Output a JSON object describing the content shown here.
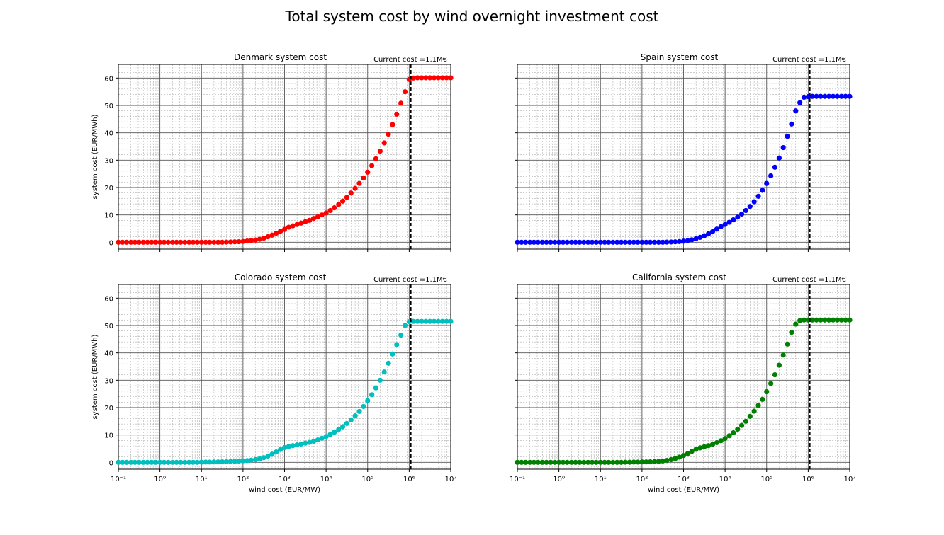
{
  "figure": {
    "title": "Total system cost by wind overnight investment cost"
  },
  "chart_data": [
    {
      "type": "scatter",
      "title": "Denmark system cost",
      "annotation": "Current cost =1.1M€",
      "marker_x": 1100000,
      "color": "#ff0000",
      "xlabel": "",
      "ylabel": "system cost (EUR/MWh)",
      "xscale": "log",
      "xlim": [
        0.1,
        10000000
      ],
      "ylim": [
        -2.5,
        65
      ],
      "yticks": [
        0,
        10,
        20,
        30,
        40,
        50,
        60
      ],
      "grid": "major and minor",
      "x": [
        0.1,
        0.126,
        0.158,
        0.2,
        0.251,
        0.316,
        0.398,
        0.501,
        0.631,
        0.794,
        1,
        1.26,
        1.58,
        2,
        2.51,
        3.16,
        3.98,
        5.01,
        6.31,
        7.94,
        10,
        12.6,
        15.8,
        20,
        25.1,
        31.6,
        39.8,
        50.1,
        63.1,
        79.4,
        100,
        126,
        158,
        200,
        251,
        316,
        398,
        501,
        631,
        794,
        1000,
        1260,
        1580,
        2000,
        2510,
        3160,
        3980,
        5010,
        6310,
        7940,
        10000,
        12600,
        15800,
        20000,
        25100,
        31600,
        39800,
        50100,
        63100,
        79400,
        100000,
        126000,
        158000,
        200000,
        251000,
        316000,
        398000,
        501000,
        631000,
        794000,
        1000000,
        1260000,
        1580000,
        2000000,
        2510000,
        3160000,
        3980000,
        5010000,
        6310000,
        7940000,
        10000000
      ],
      "y": [
        0,
        0,
        0,
        0,
        0,
        0,
        0,
        0,
        0,
        0,
        0,
        0,
        0,
        0,
        0,
        0,
        0,
        0,
        0,
        0,
        0,
        0,
        0,
        0,
        0,
        0,
        0.05,
        0.1,
        0.15,
        0.2,
        0.3,
        0.45,
        0.6,
        0.8,
        1.1,
        1.5,
        2.0,
        2.6,
        3.3,
        4.0,
        4.7,
        5.5,
        6.0,
        6.5,
        7.0,
        7.5,
        8.0,
        8.7,
        9.3,
        10.0,
        10.7,
        11.6,
        12.6,
        13.8,
        15.0,
        16.4,
        18.0,
        19.7,
        21.5,
        23.5,
        25.6,
        28.0,
        30.5,
        33.3,
        36.3,
        39.5,
        43.0,
        46.8,
        50.8,
        55.0,
        59.5,
        60.0,
        60.1,
        60.1,
        60.1,
        60.1,
        60.1,
        60.1,
        60.1,
        60.1,
        60.1
      ]
    },
    {
      "type": "scatter",
      "title": "Spain system cost",
      "annotation": "Current cost =1.1M€",
      "marker_x": 1100000,
      "color": "#0000ff",
      "xlabel": "",
      "ylabel": "",
      "xscale": "log",
      "xlim": [
        0.1,
        10000000
      ],
      "ylim": [
        -2.5,
        65
      ],
      "yticks": [
        0,
        10,
        20,
        30,
        40,
        50,
        60
      ],
      "grid": "major and minor",
      "x": [
        0.1,
        0.126,
        0.158,
        0.2,
        0.251,
        0.316,
        0.398,
        0.501,
        0.631,
        0.794,
        1,
        1.26,
        1.58,
        2,
        2.51,
        3.16,
        3.98,
        5.01,
        6.31,
        7.94,
        10,
        12.6,
        15.8,
        20,
        25.1,
        31.6,
        39.8,
        50.1,
        63.1,
        79.4,
        100,
        126,
        158,
        200,
        251,
        316,
        398,
        501,
        631,
        794,
        1000,
        1260,
        1580,
        2000,
        2510,
        3160,
        3980,
        5010,
        6310,
        7940,
        10000,
        12600,
        15800,
        20000,
        25100,
        31600,
        39800,
        50100,
        63100,
        79400,
        100000,
        126000,
        158000,
        200000,
        251000,
        316000,
        398000,
        501000,
        631000,
        794000,
        1000000,
        1260000,
        1580000,
        2000000,
        2510000,
        3160000,
        3980000,
        5010000,
        6310000,
        7940000,
        10000000
      ],
      "y": [
        0,
        0,
        0,
        0,
        0,
        0,
        0,
        0,
        0,
        0,
        0,
        0,
        0,
        0,
        0,
        0,
        0,
        0,
        0,
        0,
        0,
        0,
        0,
        0,
        0,
        0,
        0,
        0,
        0,
        0,
        0,
        0,
        0,
        0,
        0,
        0,
        0.05,
        0.1,
        0.15,
        0.25,
        0.4,
        0.6,
        0.9,
        1.3,
        1.8,
        2.4,
        3.1,
        3.9,
        4.8,
        5.7,
        6.5,
        7.3,
        8.2,
        9.2,
        10.3,
        11.6,
        13.1,
        14.8,
        16.8,
        19.0,
        21.5,
        24.3,
        27.4,
        30.8,
        34.6,
        38.7,
        43.2,
        48.0,
        51.0,
        53.0,
        53.2,
        53.3,
        53.3,
        53.3,
        53.3,
        53.3,
        53.3,
        53.3,
        53.3,
        53.3,
        53.3
      ]
    },
    {
      "type": "scatter",
      "title": "Colorado system cost",
      "annotation": "Current cost =1.1M€",
      "marker_x": 1100000,
      "color": "#00bfbf",
      "xlabel": "wind cost (EUR/MW)",
      "ylabel": "system cost (EUR/MWh)",
      "xscale": "log",
      "xlim": [
        0.1,
        10000000
      ],
      "ylim": [
        -2.5,
        65
      ],
      "yticks": [
        0,
        10,
        20,
        30,
        40,
        50,
        60
      ],
      "xticks": [
        "10⁻¹",
        "10⁰",
        "10¹",
        "10²",
        "10³",
        "10⁴",
        "10⁵",
        "10⁶",
        "10⁷"
      ],
      "grid": "major and minor",
      "x": [
        0.1,
        0.126,
        0.158,
        0.2,
        0.251,
        0.316,
        0.398,
        0.501,
        0.631,
        0.794,
        1,
        1.26,
        1.58,
        2,
        2.51,
        3.16,
        3.98,
        5.01,
        6.31,
        7.94,
        10,
        12.6,
        15.8,
        20,
        25.1,
        31.6,
        39.8,
        50.1,
        63.1,
        79.4,
        100,
        126,
        158,
        200,
        251,
        316,
        398,
        501,
        631,
        794,
        1000,
        1260,
        1580,
        2000,
        2510,
        3160,
        3980,
        5010,
        6310,
        7940,
        10000,
        12600,
        15800,
        20000,
        25100,
        31600,
        39800,
        50100,
        63100,
        79400,
        100000,
        126000,
        158000,
        200000,
        251000,
        316000,
        398000,
        501000,
        631000,
        794000,
        1000000,
        1260000,
        1580000,
        2000000,
        2510000,
        3160000,
        3980000,
        5010000,
        6310000,
        7940000,
        10000000
      ],
      "y": [
        0,
        0,
        0,
        0,
        0,
        0,
        0,
        0,
        0,
        0,
        0,
        0,
        0,
        0,
        0,
        0,
        0,
        0,
        0,
        0,
        0.05,
        0.1,
        0.1,
        0.15,
        0.15,
        0.2,
        0.25,
        0.3,
        0.35,
        0.45,
        0.55,
        0.65,
        0.8,
        1.0,
        1.3,
        1.7,
        2.3,
        3.0,
        3.8,
        4.7,
        5.4,
        5.8,
        6.1,
        6.4,
        6.7,
        7.0,
        7.3,
        7.7,
        8.2,
        8.8,
        9.4,
        10.2,
        11.0,
        12.0,
        13.0,
        14.2,
        15.5,
        17.0,
        18.6,
        20.4,
        22.5,
        24.7,
        27.2,
        30.0,
        33.0,
        36.2,
        39.6,
        43.0,
        46.5,
        50.0,
        51.4,
        51.5,
        51.5,
        51.5,
        51.5,
        51.5,
        51.5,
        51.5,
        51.5,
        51.5,
        51.5
      ]
    },
    {
      "type": "scatter",
      "title": "California system cost",
      "annotation": "Current cost =1.1M€",
      "marker_x": 1100000,
      "color": "#008000",
      "xlabel": "wind cost (EUR/MW)",
      "ylabel": "",
      "xscale": "log",
      "xlim": [
        0.1,
        10000000
      ],
      "ylim": [
        -2.5,
        65
      ],
      "yticks": [
        0,
        10,
        20,
        30,
        40,
        50,
        60
      ],
      "xticks": [
        "10⁻¹",
        "10⁰",
        "10¹",
        "10²",
        "10³",
        "10⁴",
        "10⁵",
        "10⁶",
        "10⁷"
      ],
      "grid": "major and minor",
      "x": [
        0.1,
        0.126,
        0.158,
        0.2,
        0.251,
        0.316,
        0.398,
        0.501,
        0.631,
        0.794,
        1,
        1.26,
        1.58,
        2,
        2.51,
        3.16,
        3.98,
        5.01,
        6.31,
        7.94,
        10,
        12.6,
        15.8,
        20,
        25.1,
        31.6,
        39.8,
        50.1,
        63.1,
        79.4,
        100,
        126,
        158,
        200,
        251,
        316,
        398,
        501,
        631,
        794,
        1000,
        1260,
        1580,
        2000,
        2510,
        3160,
        3980,
        5010,
        6310,
        7940,
        10000,
        12600,
        15800,
        20000,
        25100,
        31600,
        39800,
        50100,
        63100,
        79400,
        100000,
        126000,
        158000,
        200000,
        251000,
        316000,
        398000,
        501000,
        631000,
        794000,
        1000000,
        1260000,
        1580000,
        2000000,
        2510000,
        3160000,
        3980000,
        5010000,
        6310000,
        7940000,
        10000000
      ],
      "y": [
        0,
        0,
        0,
        0,
        0,
        0,
        0,
        0,
        0,
        0,
        0,
        0,
        0,
        0,
        0,
        0,
        0,
        0,
        0,
        0,
        0,
        0,
        0,
        0,
        0,
        0,
        0.05,
        0.05,
        0.1,
        0.1,
        0.15,
        0.15,
        0.2,
        0.25,
        0.35,
        0.5,
        0.7,
        1.0,
        1.4,
        1.9,
        2.5,
        3.2,
        4.0,
        4.8,
        5.3,
        5.7,
        6.1,
        6.6,
        7.2,
        7.9,
        8.7,
        9.7,
        10.8,
        12.1,
        13.5,
        15.0,
        16.8,
        18.7,
        20.8,
        23.0,
        25.8,
        28.8,
        32.0,
        35.5,
        39.2,
        43.2,
        47.5,
        50.5,
        51.8,
        52.0,
        52.0,
        52.0,
        52.0,
        52.0,
        52.0,
        52.0,
        52.0,
        52.0,
        52.0,
        52.0,
        52.0
      ]
    }
  ]
}
